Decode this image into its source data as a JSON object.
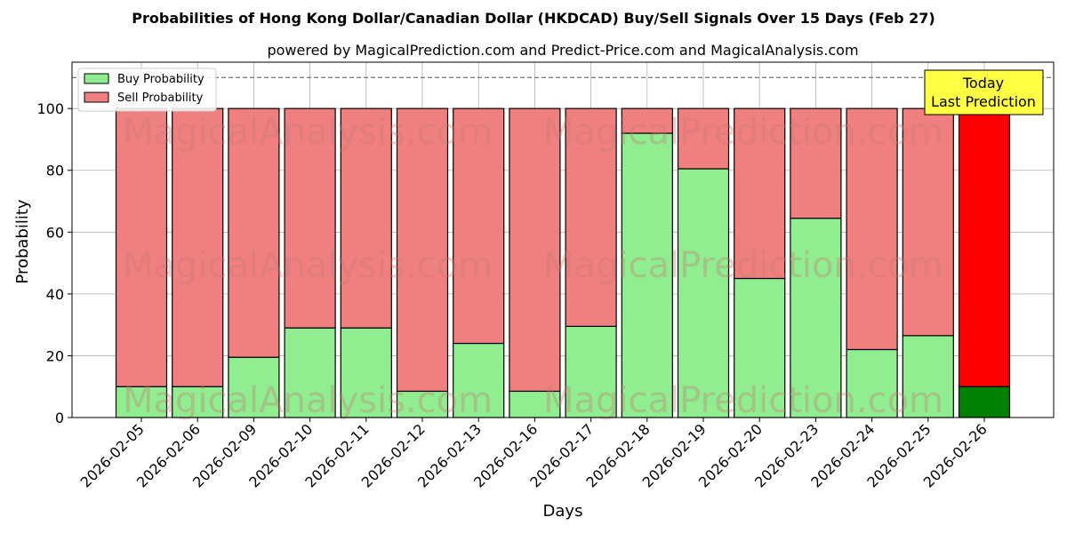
{
  "chart_data": {
    "type": "bar",
    "stacked": true,
    "title": "Probabilities of Hong Kong Dollar/Canadian Dollar (HKDCAD) Buy/Sell Signals Over 15 Days (Feb 27)",
    "subtitle": "powered by MagicalPrediction.com and Predict-Price.com and MagicalAnalysis.com",
    "xlabel": "Days",
    "ylabel": "Probability",
    "ylim": [
      0,
      115
    ],
    "yticks": [
      0,
      20,
      40,
      60,
      80,
      100
    ],
    "threshold_line": 110,
    "grid": true,
    "legend_placement": "top-left",
    "categories": [
      "2026-02-05",
      "2026-02-06",
      "2026-02-09",
      "2026-02-10",
      "2026-02-11",
      "2026-02-12",
      "2026-02-13",
      "2026-02-16",
      "2026-02-17",
      "2026-02-18",
      "2026-02-19",
      "2026-02-20",
      "2026-02-23",
      "2026-02-24",
      "2026-02-25",
      "2026-02-26"
    ],
    "series": [
      {
        "name": "Buy Probability",
        "color": "#90ee90",
        "values": [
          10,
          10,
          19.5,
          29,
          29,
          8.5,
          24,
          8.5,
          29.5,
          92,
          80.5,
          45,
          64.5,
          22,
          26.5,
          10
        ]
      },
      {
        "name": "Sell Probability",
        "color": "#f08080",
        "values": [
          90,
          90,
          80.5,
          71,
          71,
          91.5,
          76,
          91.5,
          70.5,
          8,
          19.5,
          55,
          35.5,
          78,
          73.5,
          90
        ]
      }
    ],
    "highlight": {
      "index": 15,
      "buy_color": "#008000",
      "sell_color": "#ff0000"
    },
    "annotation": {
      "line1": "Today",
      "line2": "Last Prediction",
      "color": "#ffff44"
    },
    "watermarks": [
      "MagicalAnalysis.com",
      "MagicalPrediction.com"
    ]
  }
}
